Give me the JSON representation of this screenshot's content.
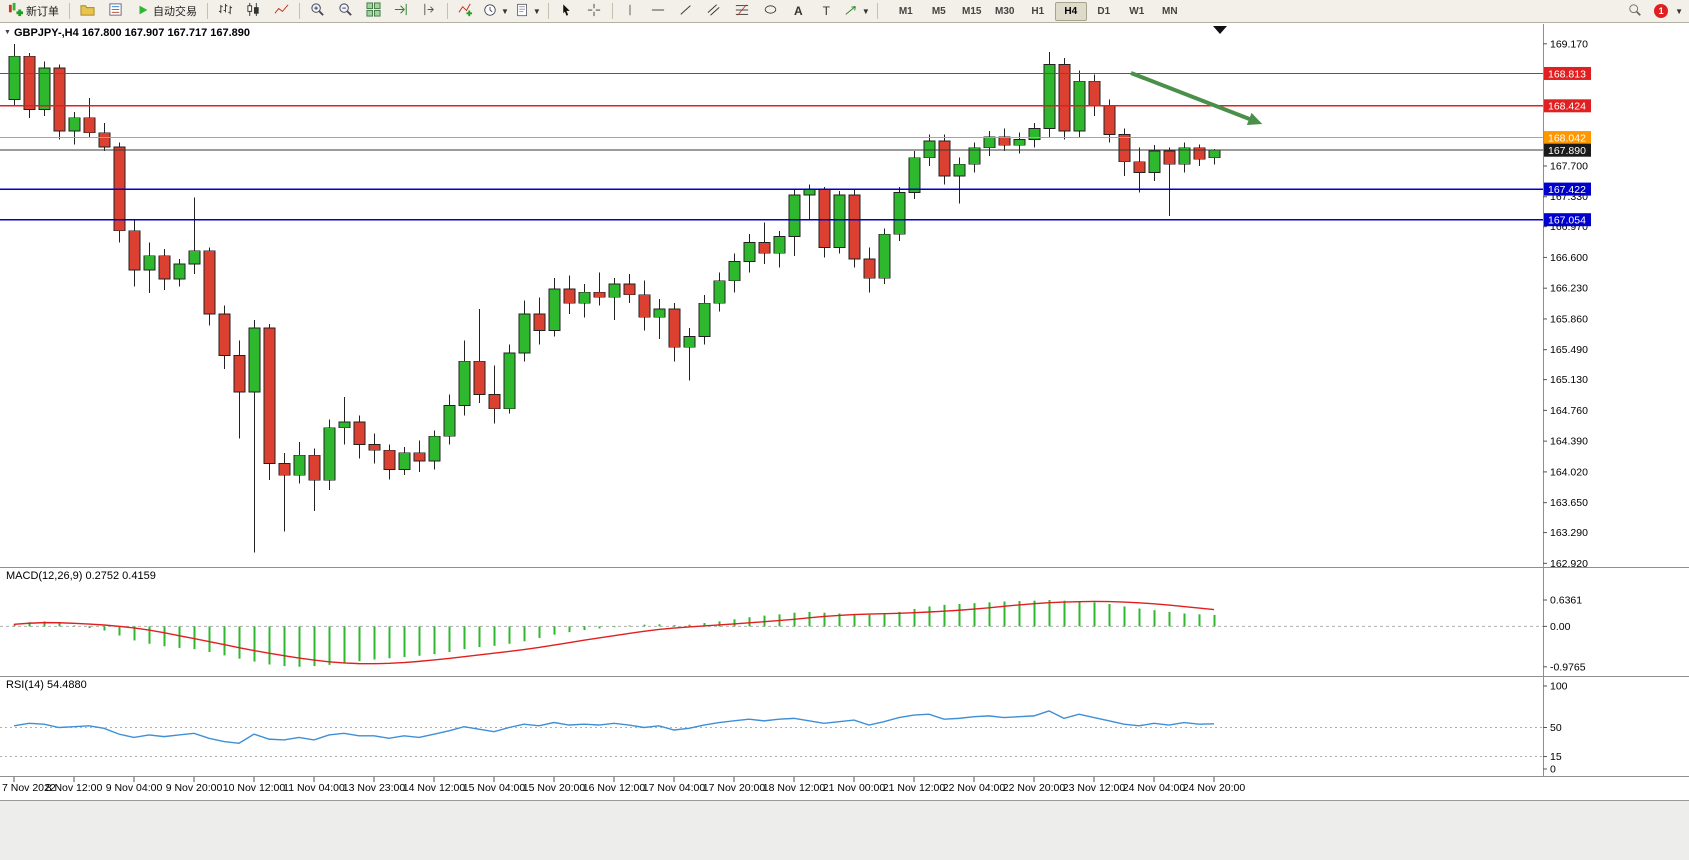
{
  "toolbar": {
    "new_order": "新订单",
    "auto_trading": "自动交易",
    "timeframes": [
      "M1",
      "M5",
      "M15",
      "M30",
      "H1",
      "H4",
      "D1",
      "W1",
      "MN"
    ],
    "active_timeframe": "H4",
    "alerts_badge": "1"
  },
  "chart_data": {
    "type": "candlestick",
    "symbol": "GBPJPY-",
    "timeframe": "H4",
    "legend_symbol": "GBPJPY-,H4",
    "legend_ohlc": "167.800 167.907 167.717 167.890",
    "ohlc_current": {
      "open": "167.800",
      "high": "167.907",
      "low": "167.717",
      "close": "167.890"
    },
    "ylim": [
      162.9,
      169.36
    ],
    "bull_color": "#2eb82e",
    "bear_color": "#dc4030",
    "price_ticks": [
      {
        "label": "169.170",
        "value": 169.17
      },
      {
        "label": "167.700",
        "value": 167.7
      },
      {
        "label": "167.330",
        "value": 167.33
      },
      {
        "label": "166.970",
        "value": 166.97
      },
      {
        "label": "166.600",
        "value": 166.6
      },
      {
        "label": "166.230",
        "value": 166.23
      },
      {
        "label": "165.860",
        "value": 165.86
      },
      {
        "label": "165.490",
        "value": 165.49
      },
      {
        "label": "165.130",
        "value": 165.13
      },
      {
        "label": "164.760",
        "value": 164.76
      },
      {
        "label": "164.390",
        "value": 164.39
      },
      {
        "label": "164.020",
        "value": 164.02
      },
      {
        "label": "163.650",
        "value": 163.65
      },
      {
        "label": "163.290",
        "value": 163.29
      },
      {
        "label": "162.920",
        "value": 162.92
      }
    ],
    "hlines": [
      {
        "label": "168.813",
        "value": 168.813,
        "color": "#e02020"
      },
      {
        "label": "168.424",
        "value": 168.424,
        "color": "#e02020"
      },
      {
        "label": "168.042",
        "value": 168.042,
        "color": "#ff9800"
      },
      {
        "label": "167.422",
        "value": 167.422,
        "color": "#0000cc"
      },
      {
        "label": "167.054",
        "value": 167.054,
        "color": "#0000cc"
      }
    ],
    "current_price": {
      "label": "167.890",
      "value": 167.89,
      "line_color": "#3a3a3a",
      "tag_color": "#1a1a1a"
    },
    "arrow_annotation": {
      "from": [
        1131,
        73
      ],
      "to": [
        1252,
        120
      ],
      "color": "#4a8f4a"
    },
    "label_every_n_candles": 4,
    "time_labels": [
      "7 Nov 2022",
      "8 Nov 12:00",
      "9 Nov 04:00",
      "9 Nov 20:00",
      "10 Nov 12:00",
      "11 Nov 04:00",
      "13 Nov 23:00",
      "14 Nov 12:00",
      "15 Nov 04:00",
      "15 Nov 20:00",
      "16 Nov 12:00",
      "17 Nov 04:00",
      "17 Nov 20:00",
      "18 Nov 12:00",
      "21 Nov 00:00",
      "21 Nov 12:00",
      "22 Nov 04:00",
      "22 Nov 20:00",
      "23 Nov 12:00",
      "24 Nov 04:00",
      "24 Nov 20:00"
    ],
    "candles": [
      [
        168.5,
        169.17,
        168.42,
        169.02
      ],
      [
        169.02,
        169.06,
        168.28,
        168.38
      ],
      [
        168.38,
        168.96,
        168.3,
        168.88
      ],
      [
        168.88,
        168.92,
        168.02,
        168.12
      ],
      [
        168.12,
        168.35,
        167.96,
        168.28
      ],
      [
        168.28,
        168.52,
        168.05,
        168.1
      ],
      [
        168.1,
        168.22,
        167.88,
        167.93
      ],
      [
        167.93,
        167.98,
        166.78,
        166.92
      ],
      [
        166.92,
        167.05,
        166.25,
        166.45
      ],
      [
        166.45,
        166.78,
        166.17,
        166.62
      ],
      [
        166.62,
        166.7,
        166.21,
        166.34
      ],
      [
        166.34,
        166.58,
        166.25,
        166.52
      ],
      [
        166.52,
        167.32,
        166.4,
        166.68
      ],
      [
        166.68,
        166.72,
        165.78,
        165.92
      ],
      [
        165.92,
        166.02,
        165.26,
        165.42
      ],
      [
        165.42,
        165.6,
        164.42,
        164.98
      ],
      [
        164.98,
        165.85,
        163.05,
        165.75
      ],
      [
        165.75,
        165.8,
        163.92,
        164.12
      ],
      [
        164.12,
        164.25,
        163.3,
        163.98
      ],
      [
        163.98,
        164.38,
        163.88,
        164.22
      ],
      [
        164.22,
        164.3,
        163.55,
        163.92
      ],
      [
        163.92,
        164.65,
        163.8,
        164.55
      ],
      [
        164.55,
        164.92,
        164.35,
        164.62
      ],
      [
        164.62,
        164.7,
        164.18,
        164.35
      ],
      [
        164.35,
        164.48,
        164.12,
        164.28
      ],
      [
        164.28,
        164.35,
        163.93,
        164.05
      ],
      [
        164.05,
        164.32,
        163.98,
        164.25
      ],
      [
        164.25,
        164.4,
        164.02,
        164.15
      ],
      [
        164.15,
        164.52,
        164.05,
        164.45
      ],
      [
        164.45,
        164.95,
        164.35,
        164.82
      ],
      [
        164.82,
        165.6,
        164.7,
        165.35
      ],
      [
        165.35,
        165.98,
        164.85,
        164.95
      ],
      [
        164.95,
        165.3,
        164.6,
        164.78
      ],
      [
        164.78,
        165.55,
        164.72,
        165.45
      ],
      [
        165.45,
        166.08,
        165.35,
        165.92
      ],
      [
        165.92,
        166.12,
        165.55,
        165.72
      ],
      [
        165.72,
        166.35,
        165.65,
        166.22
      ],
      [
        166.22,
        166.38,
        165.92,
        166.05
      ],
      [
        166.05,
        166.28,
        165.88,
        166.18
      ],
      [
        166.18,
        166.42,
        166.02,
        166.12
      ],
      [
        166.12,
        166.35,
        165.85,
        166.28
      ],
      [
        166.28,
        166.4,
        166.05,
        166.15
      ],
      [
        166.15,
        166.32,
        165.72,
        165.88
      ],
      [
        165.88,
        166.1,
        165.62,
        165.98
      ],
      [
        165.98,
        166.05,
        165.35,
        165.52
      ],
      [
        165.52,
        165.75,
        165.12,
        165.65
      ],
      [
        165.65,
        166.15,
        165.55,
        166.05
      ],
      [
        166.05,
        166.42,
        165.95,
        166.32
      ],
      [
        166.32,
        166.65,
        166.18,
        166.55
      ],
      [
        166.55,
        166.88,
        166.42,
        166.78
      ],
      [
        166.78,
        167.02,
        166.52,
        166.65
      ],
      [
        166.65,
        166.92,
        166.48,
        166.85
      ],
      [
        166.85,
        167.42,
        166.62,
        167.35
      ],
      [
        167.35,
        167.48,
        167.05,
        167.42
      ],
      [
        167.42,
        167.45,
        166.6,
        166.72
      ],
      [
        166.72,
        167.4,
        166.65,
        167.35
      ],
      [
        167.35,
        167.42,
        166.48,
        166.58
      ],
      [
        166.58,
        166.72,
        166.18,
        166.35
      ],
      [
        166.35,
        166.95,
        166.28,
        166.88
      ],
      [
        166.88,
        167.45,
        166.8,
        167.38
      ],
      [
        167.38,
        167.88,
        167.3,
        167.8
      ],
      [
        167.8,
        168.08,
        167.7,
        168.0
      ],
      [
        168.0,
        168.08,
        167.48,
        167.58
      ],
      [
        167.58,
        167.8,
        167.25,
        167.72
      ],
      [
        167.72,
        167.98,
        167.62,
        167.92
      ],
      [
        167.92,
        168.12,
        167.82,
        168.05
      ],
      [
        168.05,
        168.15,
        167.88,
        167.95
      ],
      [
        167.95,
        168.1,
        167.85,
        168.02
      ],
      [
        168.02,
        168.22,
        167.92,
        168.15
      ],
      [
        168.15,
        169.07,
        168.05,
        168.92
      ],
      [
        168.92,
        169.0,
        168.02,
        168.12
      ],
      [
        168.12,
        168.85,
        168.05,
        168.72
      ],
      [
        168.72,
        168.8,
        168.3,
        168.42
      ],
      [
        168.42,
        168.5,
        167.98,
        168.08
      ],
      [
        168.08,
        168.15,
        167.58,
        167.75
      ],
      [
        167.75,
        167.92,
        167.38,
        167.62
      ],
      [
        167.62,
        167.95,
        167.52,
        167.88
      ],
      [
        167.88,
        167.92,
        167.1,
        167.72
      ],
      [
        167.72,
        167.98,
        167.62,
        167.92
      ],
      [
        167.92,
        167.96,
        167.7,
        167.78
      ],
      [
        167.8,
        167.907,
        167.717,
        167.89
      ]
    ],
    "indicators": {
      "macd": {
        "legend": "MACD(12,26,9) 0.2752 0.4159",
        "title": "MACD(12,26,9)",
        "main_value": 0.2752,
        "signal_value": 0.4159,
        "ylim": [
          -1.15,
          1.24
        ],
        "histogram_color": "#2eb82e",
        "signal_color": "#e02020",
        "signal_sma_period": 9,
        "axis_ticks": [
          {
            "label": "0.6361",
            "value": 0.6361
          },
          {
            "label": "0.00",
            "value": 0
          },
          {
            "label": "-0.9765",
            "value": -0.9765
          }
        ],
        "histogram": [
          0.05,
          0.1,
          0.12,
          0.08,
          0.02,
          -0.04,
          -0.1,
          -0.22,
          -0.34,
          -0.42,
          -0.48,
          -0.52,
          -0.55,
          -0.62,
          -0.7,
          -0.78,
          -0.85,
          -0.92,
          -0.96,
          -0.975,
          -0.96,
          -0.93,
          -0.88,
          -0.84,
          -0.8,
          -0.77,
          -0.74,
          -0.71,
          -0.67,
          -0.62,
          -0.55,
          -0.5,
          -0.47,
          -0.42,
          -0.36,
          -0.28,
          -0.2,
          -0.14,
          -0.09,
          -0.05,
          -0.02,
          0.02,
          0.04,
          0.05,
          0.03,
          0.04,
          0.08,
          0.12,
          0.17,
          0.22,
          0.26,
          0.29,
          0.33,
          0.35,
          0.33,
          0.31,
          0.3,
          0.28,
          0.3,
          0.35,
          0.42,
          0.48,
          0.52,
          0.54,
          0.56,
          0.58,
          0.6,
          0.61,
          0.62,
          0.636,
          0.62,
          0.6,
          0.58,
          0.54,
          0.48,
          0.43,
          0.39,
          0.35,
          0.31,
          0.29,
          0.2752
        ]
      },
      "rsi": {
        "legend": "RSI(14) 54.4880",
        "title": "RSI(14)",
        "value": 54.488,
        "ylim": [
          0,
          100
        ],
        "line_color": "#3f8fd6",
        "levels": [
          50,
          15
        ],
        "axis_ticks": [
          {
            "label": "100",
            "value": 100
          },
          {
            "label": "50",
            "value": 50
          },
          {
            "label": "15",
            "value": 15
          },
          {
            "label": "0",
            "value": 0
          }
        ],
        "series": [
          52,
          55,
          54,
          50,
          51,
          52,
          49,
          42,
          38,
          41,
          39,
          41,
          43,
          37,
          33,
          31,
          42,
          36,
          35,
          38,
          35,
          41,
          43,
          40,
          40,
          37,
          40,
          38,
          42,
          46,
          51,
          48,
          45,
          50,
          54,
          52,
          56,
          53,
          54,
          53,
          55,
          53,
          50,
          52,
          47,
          49,
          53,
          56,
          58,
          60,
          58,
          60,
          61,
          58,
          55,
          57,
          59,
          53,
          57,
          62,
          65,
          66,
          60,
          61,
          63,
          64,
          62,
          63,
          64,
          70,
          61,
          66,
          62,
          58,
          54,
          52,
          55,
          53,
          56,
          54,
          54.488
        ]
      }
    }
  }
}
